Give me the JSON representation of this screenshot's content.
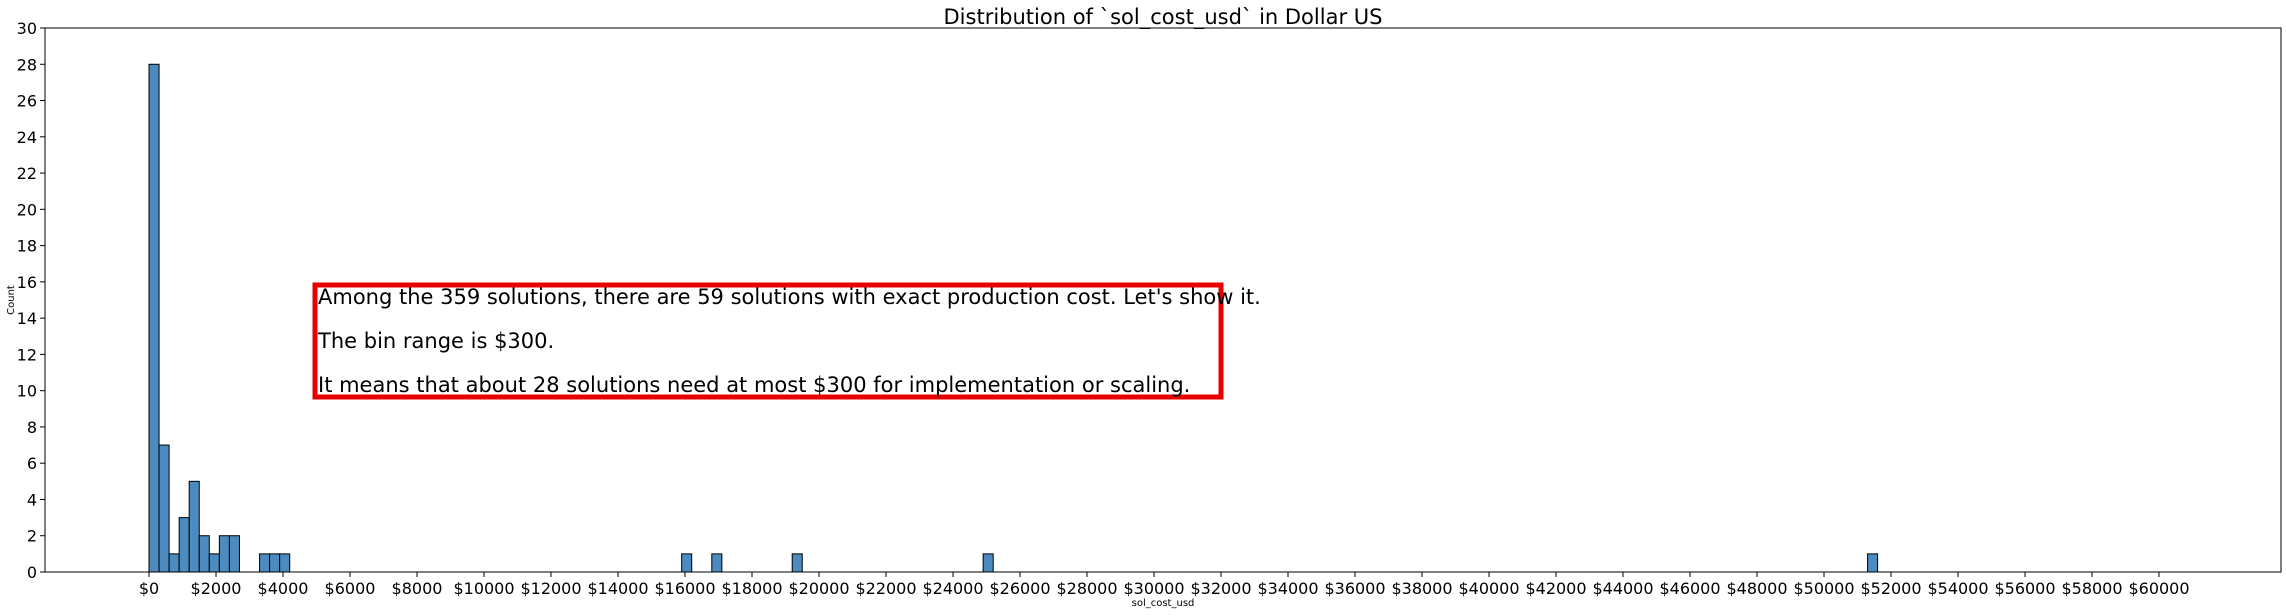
{
  "chart_data": {
    "type": "bar",
    "title": "Distribution of `sol_cost_usd` in Dollar US",
    "xlabel": "sol_cost_usd",
    "ylabel": "Count",
    "bin_width": 300,
    "xlim": [
      -3000,
      63000
    ],
    "ylim": [
      0,
      30
    ],
    "grid": false,
    "x_ticks": [
      0,
      2000,
      4000,
      6000,
      8000,
      10000,
      12000,
      14000,
      16000,
      18000,
      20000,
      22000,
      24000,
      26000,
      28000,
      30000,
      32000,
      34000,
      36000,
      38000,
      40000,
      42000,
      44000,
      46000,
      48000,
      50000,
      52000,
      54000,
      56000,
      58000,
      60000
    ],
    "x_tick_labels": [
      "$0",
      "$2000",
      "$4000",
      "$6000",
      "$8000",
      "$10000",
      "$12000",
      "$14000",
      "$16000",
      "$18000",
      "$20000",
      "$22000",
      "$24000",
      "$26000",
      "$28000",
      "$30000",
      "$32000",
      "$34000",
      "$36000",
      "$38000",
      "$40000",
      "$42000",
      "$44000",
      "$46000",
      "$48000",
      "$50000",
      "$52000",
      "$54000",
      "$56000",
      "$58000",
      "$60000"
    ],
    "y_ticks": [
      0,
      2,
      4,
      6,
      8,
      10,
      12,
      14,
      16,
      18,
      20,
      22,
      24,
      26,
      28,
      30
    ],
    "bins": [
      {
        "start": 0,
        "count": 28
      },
      {
        "start": 300,
        "count": 7
      },
      {
        "start": 600,
        "count": 1
      },
      {
        "start": 900,
        "count": 3
      },
      {
        "start": 1200,
        "count": 5
      },
      {
        "start": 1500,
        "count": 2
      },
      {
        "start": 1800,
        "count": 1
      },
      {
        "start": 2100,
        "count": 2
      },
      {
        "start": 2400,
        "count": 2
      },
      {
        "start": 3300,
        "count": 1
      },
      {
        "start": 3600,
        "count": 1
      },
      {
        "start": 3900,
        "count": 1
      },
      {
        "start": 15900,
        "count": 1
      },
      {
        "start": 16800,
        "count": 1
      },
      {
        "start": 19200,
        "count": 1
      },
      {
        "start": 24900,
        "count": 1
      },
      {
        "start": 51300,
        "count": 1
      }
    ],
    "bar_color": "#4c8bbf",
    "annotation": {
      "lines": [
        "Among the 359 solutions, there are 59 solutions with exact production cost. Let's show it.",
        "The bin range is $300.",
        "It means that about 28 solutions need at most $300 for implementation or scaling."
      ],
      "border_color": "#e60000"
    }
  }
}
